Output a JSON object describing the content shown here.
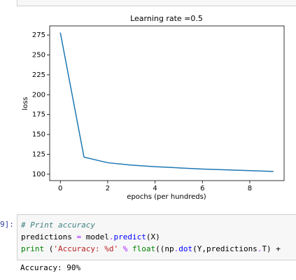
{
  "chart_data": {
    "type": "line",
    "title": "Learning rate =0.5",
    "x_label": "epochs (per hundreds)",
    "y_label": "loss",
    "x": [
      0,
      1,
      2,
      3,
      4,
      5,
      6,
      7,
      8,
      9
    ],
    "series": [
      {
        "color": "#1f77b4",
        "values": [
          278,
          121.5,
          114.5,
          111.5,
          109.5,
          108,
          106.5,
          105.5,
          104.5,
          103.5
        ]
      }
    ],
    "xlim": [
      -0.45,
      9.45
    ],
    "xticks": [
      0,
      2,
      4,
      6,
      8
    ],
    "ylim": [
      92,
      286.5
    ],
    "yticks": [
      100,
      125,
      150,
      175,
      200,
      225,
      250,
      275
    ]
  },
  "cell": {
    "prompt": "9]:",
    "lines": [
      [
        "# Print accuracy"
      ],
      [
        "predictions",
        " = ",
        "model",
        ".",
        "predict",
        "(X)"
      ],
      [
        "print",
        " (",
        "'Accuracy: %d'",
        " % ",
        "float",
        "((np",
        ".",
        "dot",
        "(Y,predictions",
        ".",
        "T) +"
      ]
    ],
    "output": "Accuracy: 90%"
  }
}
